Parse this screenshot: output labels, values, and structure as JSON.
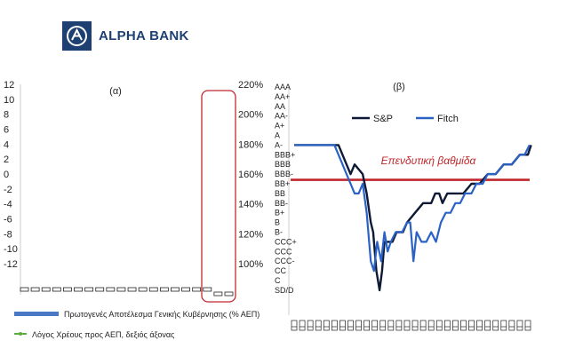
{
  "header": {
    "logo_text": "ALPHA BANK"
  },
  "chart_data": [
    {
      "type": "bar",
      "panel_label": "(α)",
      "y_left_ticks": [
        "12",
        "10",
        "8",
        "6",
        "4",
        "2",
        "0",
        "-2",
        "-4",
        "-6",
        "-8",
        "-10",
        "-12"
      ],
      "y_left_lim": [
        -12,
        12
      ],
      "y_right_ticks": [
        "220%",
        "200%",
        "180%",
        "160%",
        "140%",
        "120%",
        "100%"
      ],
      "y_right_lim": [
        100,
        220
      ],
      "category_count": 20,
      "category_label_text": "",
      "series": [
        {
          "name": "Πρωτογενές Αποτέλεσμα Γενικής Κυβέρνησης (% ΑΕΠ)",
          "axis": "left",
          "color": "#4a78c4",
          "legend_marker": "bar"
        },
        {
          "name": "Λόγος Χρέους προς ΑΕΠ, δεξιός άξονας",
          "axis": "right",
          "color": "#5faa3c",
          "legend_marker": "line"
        }
      ],
      "legend_position": "bottom",
      "highlight": {
        "color": "#c0282d",
        "categories": [
          18,
          19
        ]
      }
    },
    {
      "type": "line",
      "panel_label": "(β)",
      "y_categories": [
        "AAA",
        "AA+",
        "AA",
        "AA-",
        "A+",
        "A",
        "A-",
        "BBB+",
        "BBB",
        "BBB-",
        "BB+",
        "BB",
        "BB-",
        "B+",
        "B",
        "B-",
        "CCC+",
        "CCC",
        "CCC-",
        "CC",
        "C",
        "SD/D"
      ],
      "x_tick_count": 30,
      "x_tick_text": "",
      "series": [
        {
          "name": "S&P",
          "color": "#0e1a35",
          "path": [
            [
              0,
              6
            ],
            [
              5.5,
              6
            ],
            [
              6,
              7
            ],
            [
              6.5,
              8
            ],
            [
              7,
              9
            ],
            [
              7.5,
              8
            ],
            [
              8.5,
              9
            ],
            [
              9,
              11
            ],
            [
              9.5,
              14
            ],
            [
              9.8,
              15
            ],
            [
              10.2,
              19
            ],
            [
              10.6,
              21
            ],
            [
              10.9,
              19
            ],
            [
              11.2,
              16
            ],
            [
              12.2,
              16
            ],
            [
              12.7,
              15
            ],
            [
              13.5,
              15
            ],
            [
              14,
              14
            ],
            [
              15,
              13
            ],
            [
              16,
              12
            ],
            [
              17,
              12
            ],
            [
              17.5,
              11
            ],
            [
              18,
              11
            ],
            [
              18.4,
              12
            ],
            [
              19,
              11
            ],
            [
              20,
              11
            ],
            [
              21,
              11
            ],
            [
              22,
              10
            ],
            [
              23,
              10
            ],
            [
              24,
              9
            ],
            [
              25,
              9
            ],
            [
              26,
              8
            ],
            [
              27,
              8
            ],
            [
              28,
              7
            ],
            [
              29,
              7
            ],
            [
              29.4,
              6
            ]
          ]
        },
        {
          "name": "Fitch",
          "color": "#2a62c6",
          "path": [
            [
              0,
              6
            ],
            [
              5,
              6
            ],
            [
              5.5,
              7
            ],
            [
              6,
              8
            ],
            [
              6.5,
              9
            ],
            [
              7,
              10
            ],
            [
              7.5,
              11
            ],
            [
              8,
              11
            ],
            [
              8.5,
              10
            ],
            [
              9,
              13
            ],
            [
              9.5,
              18
            ],
            [
              9.9,
              19
            ],
            [
              10.3,
              16
            ],
            [
              10.8,
              18
            ],
            [
              11.2,
              15
            ],
            [
              11.6,
              17
            ],
            [
              12,
              16
            ],
            [
              12.6,
              15
            ],
            [
              13.4,
              15
            ],
            [
              14,
              14
            ],
            [
              14.4,
              14
            ],
            [
              14.8,
              18
            ],
            [
              15.2,
              15
            ],
            [
              15.8,
              16
            ],
            [
              16.4,
              16
            ],
            [
              17,
              15
            ],
            [
              17.6,
              16
            ],
            [
              18.2,
              14
            ],
            [
              18.8,
              13
            ],
            [
              19.4,
              13
            ],
            [
              20,
              12
            ],
            [
              20.6,
              12
            ],
            [
              21.2,
              11
            ],
            [
              22,
              11
            ],
            [
              22.6,
              10
            ],
            [
              23.4,
              10
            ],
            [
              24,
              9
            ],
            [
              25,
              9
            ],
            [
              26,
              8
            ],
            [
              27,
              8
            ],
            [
              28,
              7
            ],
            [
              28.6,
              7
            ],
            [
              29.2,
              6
            ]
          ]
        }
      ],
      "reference_line": {
        "label": "Επενδυτική βαθμίδα",
        "level": 9.5,
        "color": "#c0282d"
      },
      "legend_position": "top-right"
    }
  ]
}
